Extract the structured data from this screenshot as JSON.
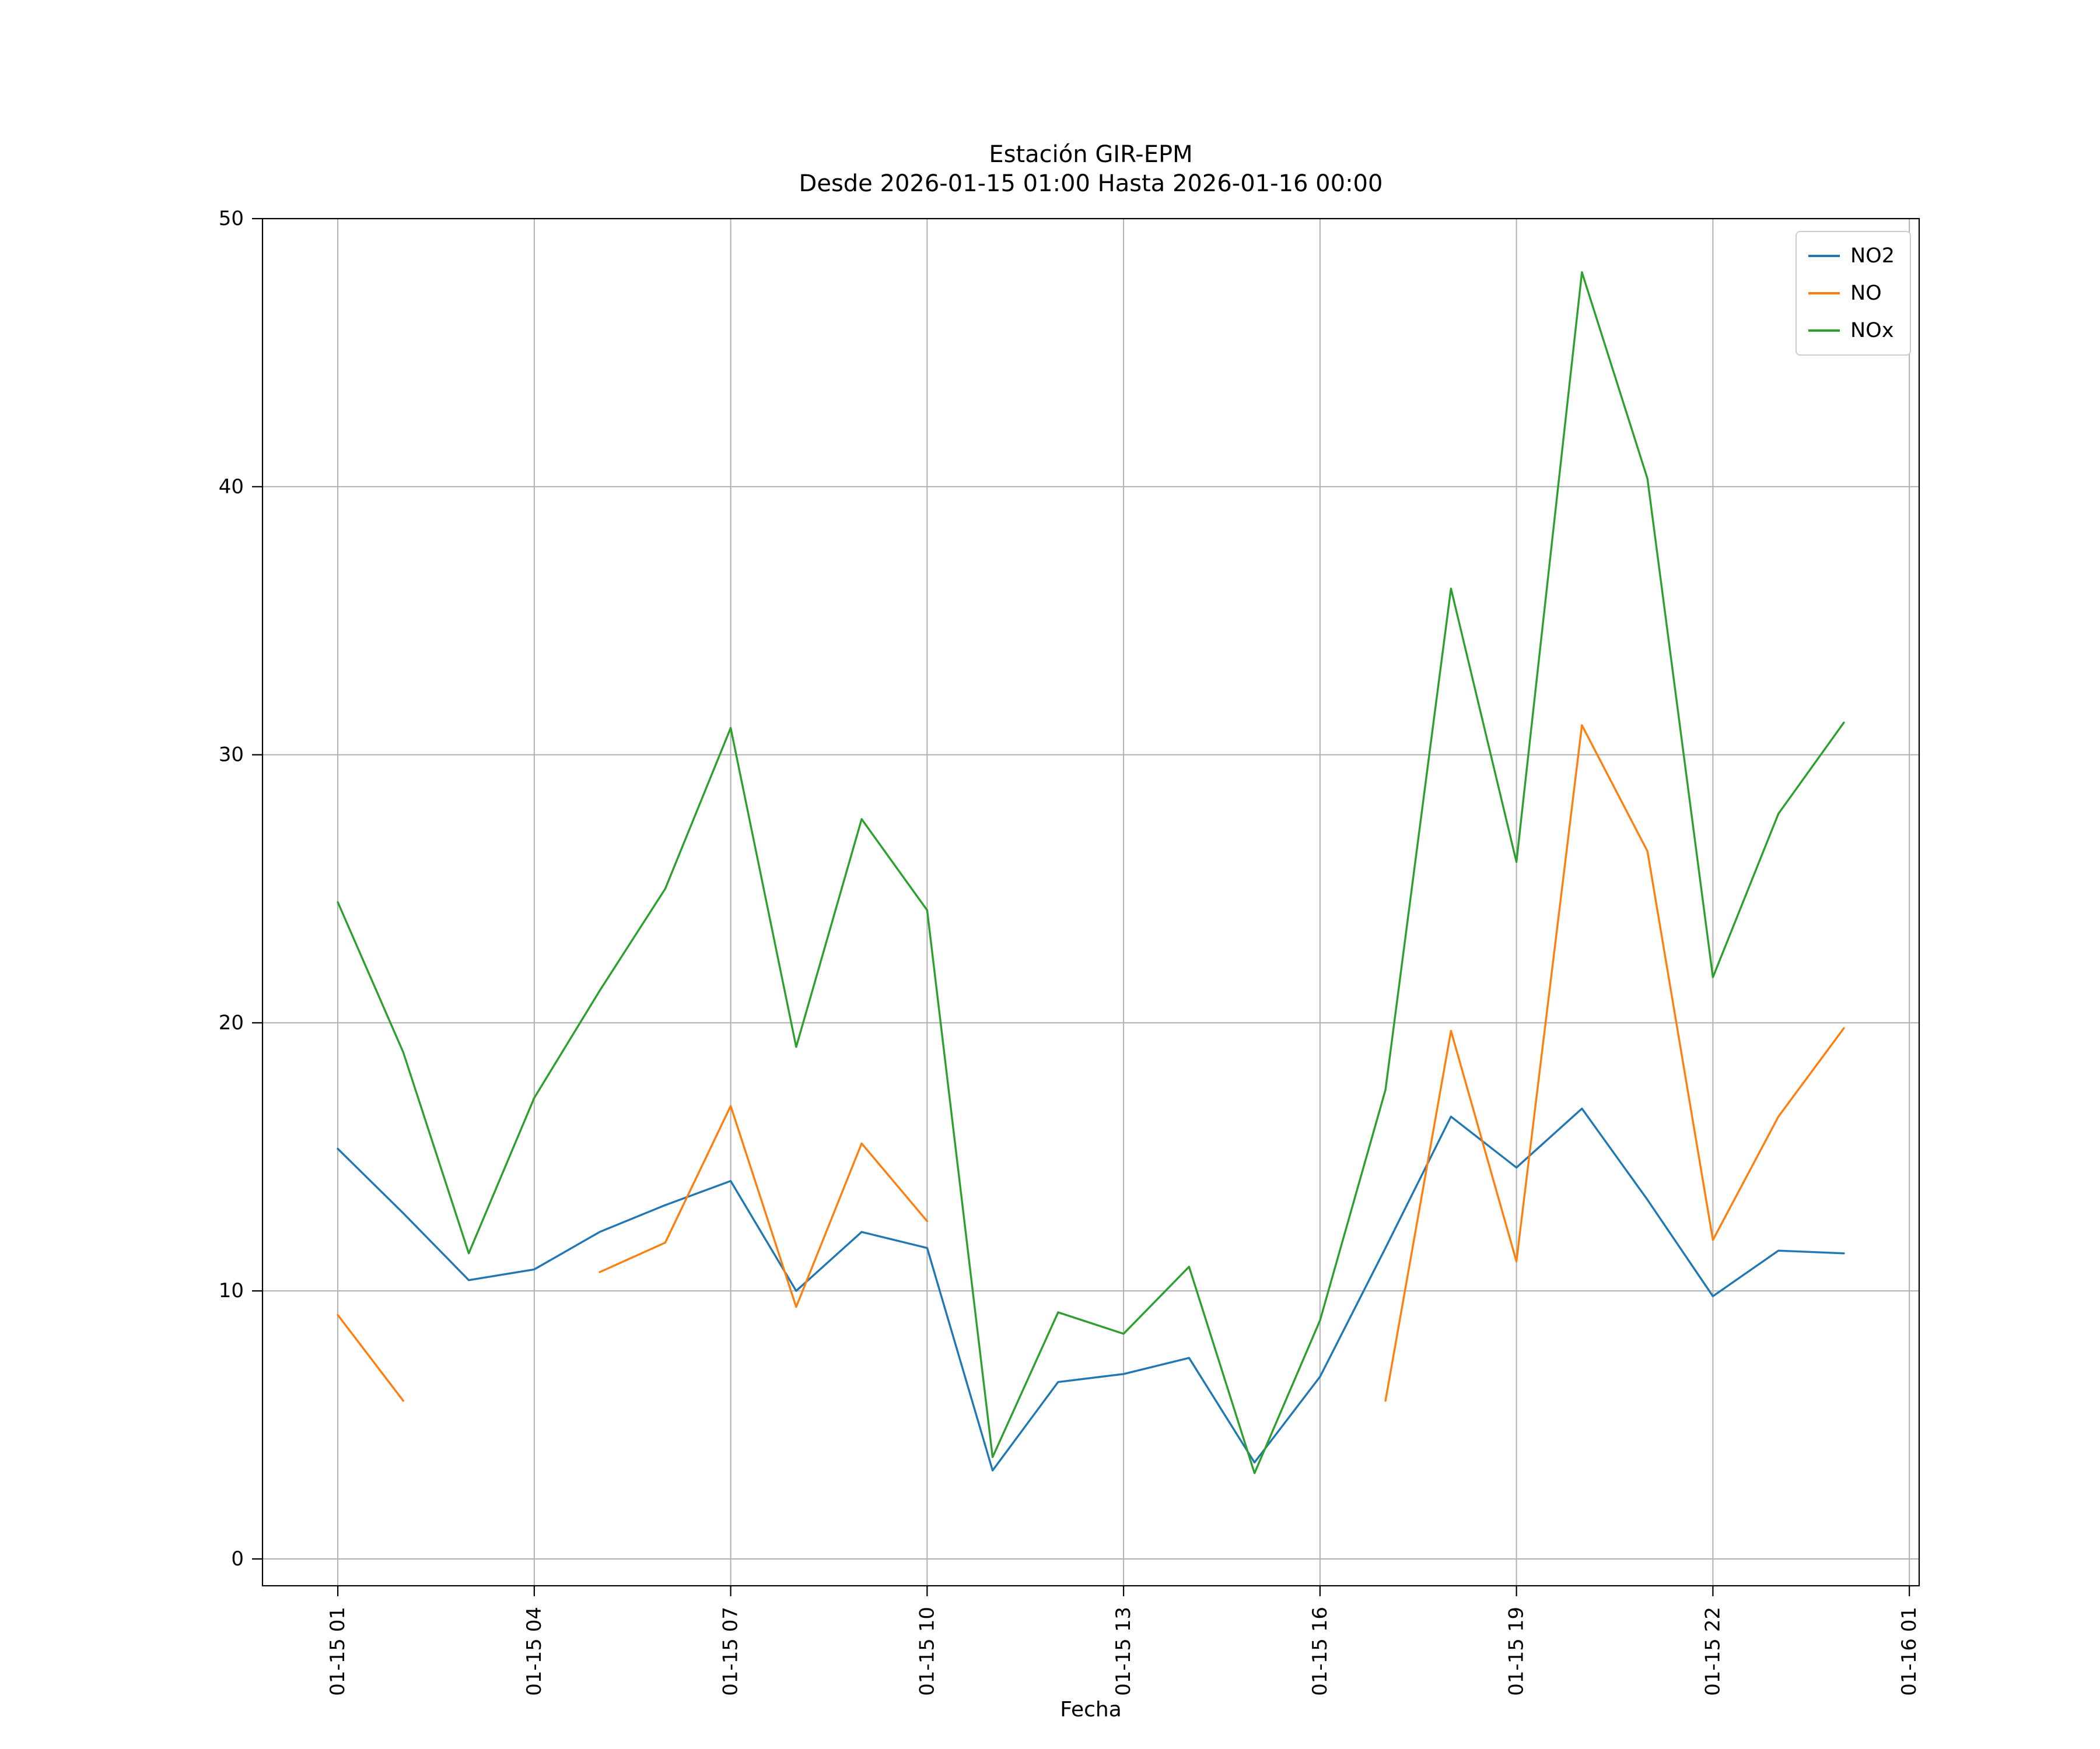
{
  "chart_data": {
    "type": "line",
    "title": "Estación GIR-EPM",
    "subtitle": "Desde 2026-01-15 01:00 Hasta 2026-01-16 00:00",
    "xlabel": "Fecha",
    "ylabel": "",
    "x_hours": [
      1,
      2,
      3,
      4,
      5,
      6,
      7,
      8,
      9,
      10,
      11,
      12,
      13,
      14,
      15,
      16,
      17,
      18,
      19,
      20,
      21,
      22,
      23,
      24
    ],
    "series": [
      {
        "name": "NO2",
        "color": "#1f77b4",
        "values": [
          15.3,
          12.9,
          10.4,
          10.8,
          12.2,
          13.2,
          14.1,
          10.0,
          12.2,
          11.6,
          3.3,
          6.6,
          6.9,
          7.5,
          3.6,
          6.8,
          11.6,
          16.5,
          14.6,
          16.8,
          13.4,
          9.8,
          11.5,
          11.4
        ]
      },
      {
        "name": "NO",
        "color": "#ff7f0e",
        "values": [
          9.1,
          5.9,
          null,
          null,
          10.7,
          11.8,
          16.9,
          9.4,
          15.5,
          12.6,
          null,
          null,
          null,
          null,
          null,
          null,
          5.9,
          19.7,
          11.1,
          31.1,
          26.4,
          11.9,
          16.5,
          19.8
        ]
      },
      {
        "name": "NOx",
        "color": "#2ca02c",
        "values": [
          24.5,
          18.9,
          11.4,
          17.2,
          21.2,
          25.0,
          31.0,
          19.1,
          27.6,
          24.2,
          3.8,
          9.2,
          8.4,
          10.9,
          3.2,
          8.9,
          17.5,
          36.2,
          26.0,
          48.0,
          40.3,
          21.7,
          27.8,
          31.2
        ]
      }
    ],
    "xticks": {
      "positions": [
        1,
        4,
        7,
        10,
        13,
        16,
        19,
        22,
        25
      ],
      "labels": [
        "01-15 01",
        "01-15 04",
        "01-15 07",
        "01-15 10",
        "01-15 13",
        "01-15 16",
        "01-15 19",
        "01-15 22",
        "01-16 01"
      ]
    },
    "yticks": [
      0,
      10,
      20,
      30,
      40,
      50
    ],
    "xlim": [
      -0.15,
      25.15
    ],
    "ylim": [
      -1,
      50
    ],
    "grid": true,
    "legend_position": "upper right"
  }
}
